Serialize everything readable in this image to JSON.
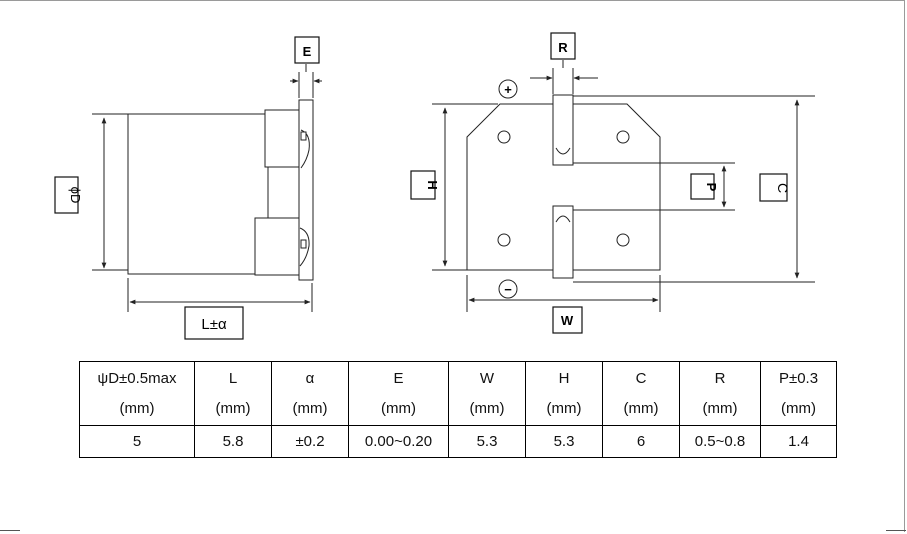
{
  "labels": {
    "E": "E",
    "R": "R",
    "phiD": "ϕD",
    "H": "H",
    "P": "P",
    "C": "C",
    "W": "W",
    "L": "L±α",
    "plus": "+",
    "minus": "−"
  },
  "table": {
    "columns": [
      {
        "name": "ψD±0.5max",
        "unit": "(mm)",
        "value": "5"
      },
      {
        "name": "L",
        "unit": "(mm)",
        "value": "5.8"
      },
      {
        "name": "α",
        "unit": "(mm)",
        "value": "±0.2"
      },
      {
        "name": "E",
        "unit": "(mm)",
        "value": "0.00~0.20"
      },
      {
        "name": "W",
        "unit": "(mm)",
        "value": "5.3"
      },
      {
        "name": "H",
        "unit": "(mm)",
        "value": "5.3"
      },
      {
        "name": "C",
        "unit": "(mm)",
        "value": "6"
      },
      {
        "name": "R",
        "unit": "(mm)",
        "value": "0.5~0.8"
      },
      {
        "name": "P±0.3",
        "unit": "(mm)",
        "value": "1.4"
      }
    ]
  },
  "colors": {
    "line": "#222222",
    "box": "#111111"
  }
}
